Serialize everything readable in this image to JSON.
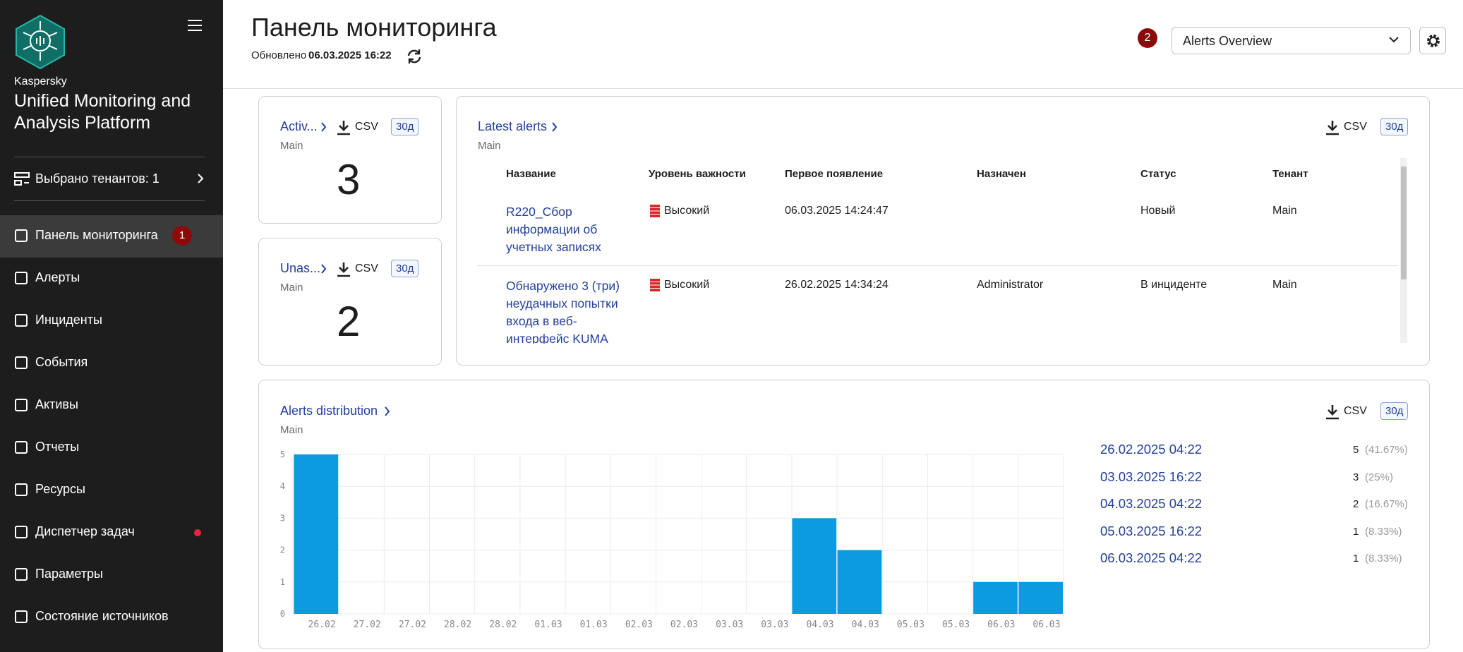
{
  "sidebar": {
    "brand": "Kaspersky",
    "product": "Unified Monitoring and Analysis Platform",
    "tenants": "Выбрано тенантов: 1",
    "nav": [
      {
        "label": "Панель мониторинга",
        "badge": "1"
      },
      {
        "label": "Алерты"
      },
      {
        "label": "Инциденты"
      },
      {
        "label": "События"
      },
      {
        "label": "Активы"
      },
      {
        "label": "Отчеты"
      },
      {
        "label": "Ресурсы"
      },
      {
        "label": "Диспетчер задач"
      },
      {
        "label": "Параметры"
      },
      {
        "label": "Состояние источников"
      }
    ]
  },
  "header": {
    "title": "Панель мониторинга",
    "updated_label": "Обновлено",
    "updated_at": "06.03.2025 16:22",
    "badge": "2",
    "layout_select": "Alerts Overview"
  },
  "widgets": {
    "active": {
      "title": "Activ...",
      "subtitle": "Main",
      "csv": "CSV",
      "period": "30д",
      "value": 3
    },
    "unassigned": {
      "title": "Unas...",
      "subtitle": "Main",
      "csv": "CSV",
      "period": "30д",
      "value": 2
    },
    "latest_alerts": {
      "title": "Latest alerts",
      "subtitle": "Main",
      "csv": "CSV",
      "period": "30д",
      "columns": [
        "Название",
        "Уровень важности",
        "Первое появление",
        "Назначен",
        "Статус",
        "Тенант"
      ],
      "rows": [
        [
          "R220_Сбор информации об учетных записях",
          "Высокий",
          "06.03.2025 14:24:47",
          null,
          "Новый",
          "Main"
        ],
        [
          "Обнаружено 3 (три) неудачных попытки входа в веб-интерфейс KUMA",
          "Высокий",
          "26.02.2025 14:34:24",
          "Administrator",
          "В инциденте",
          "Main"
        ]
      ]
    }
  },
  "chart_data": {
    "type": "bar",
    "title": "Alerts distribution",
    "subtitle": "Main",
    "csv": "CSV",
    "period": "30д",
    "categories": [
      "26.02",
      "27.02",
      "27.02",
      "28.02",
      "28.02",
      "01.03",
      "01.03",
      "02.03",
      "02.03",
      "03.03",
      "03.03",
      "04.03",
      "04.03",
      "05.03",
      "05.03",
      "06.03",
      "06.03"
    ],
    "values": [
      5,
      0,
      0,
      0,
      0,
      0,
      0,
      0,
      0,
      0,
      0,
      3,
      2,
      0,
      0,
      1,
      1
    ],
    "color": "#0a9be0",
    "ylim": [
      0,
      5
    ],
    "yticks": [
      0,
      1,
      2,
      3,
      4,
      5
    ],
    "grid": true,
    "breakdown": [
      {
        "label": "26.02.2025 04:22",
        "count": 5,
        "share": "(41.67%)"
      },
      {
        "label": "03.03.2025 16:22",
        "count": 3,
        "share": "(25%)"
      },
      {
        "label": "04.03.2025 04:22",
        "count": 2,
        "share": "(16.67%)"
      },
      {
        "label": "05.03.2025 16:22",
        "count": 1,
        "share": "(8.33%)"
      },
      {
        "label": "06.03.2025 04:22",
        "count": 1,
        "share": "(8.33%)"
      }
    ]
  }
}
